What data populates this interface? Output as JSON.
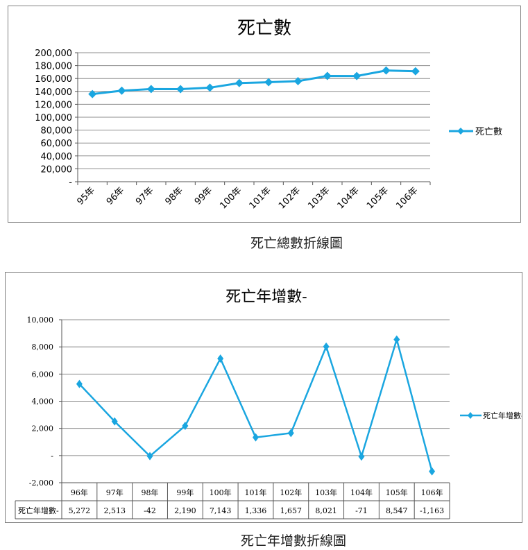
{
  "captions": {
    "chart1": "死亡總數折線圖",
    "chart2": "死亡年增數折線圖"
  },
  "colors": {
    "series": "#1aa6e0",
    "grid": "#8c8c8c",
    "frame": "#7f7f7f"
  },
  "chart_data": [
    {
      "type": "line",
      "title": "死亡數",
      "categories": [
        "95年",
        "96年",
        "97年",
        "98年",
        "99年",
        "100年",
        "101年",
        "102年",
        "103年",
        "104年",
        "105年",
        "106年"
      ],
      "series": [
        {
          "name": "死亡數",
          "values": [
            135839,
            141111,
            143624,
            143582,
            145772,
            152915,
            154251,
            155908,
            163929,
            163858,
            172405,
            171242
          ]
        }
      ],
      "ylim": [
        0,
        200000
      ],
      "yticks": [
        "-",
        "20,000",
        "40,000",
        "60,000",
        "80,000",
        "100,000",
        "120,000",
        "140,000",
        "160,000",
        "180,000",
        "200,000"
      ],
      "grid": true,
      "legend": "right"
    },
    {
      "type": "line",
      "title": "死亡年增數-",
      "categories": [
        "96年",
        "97年",
        "98年",
        "99年",
        "100年",
        "101年",
        "102年",
        "103年",
        "104年",
        "105年",
        "106年"
      ],
      "series": [
        {
          "name": "死亡年增數-",
          "values": [
            5272,
            2513,
            -42,
            2190,
            7143,
            1336,
            1657,
            8021,
            -71,
            8547,
            -1163
          ]
        }
      ],
      "ylim": [
        -2000,
        10000
      ],
      "yticks": [
        "-2,000",
        "-",
        "2,000",
        "4,000",
        "6,000",
        "8,000",
        "10,000"
      ],
      "table_labels": [
        "5,272",
        "2,513",
        "-42",
        "2,190",
        "7,143",
        "1,336",
        "1,657",
        "8,021",
        "-71",
        "8,547",
        "-1,163"
      ],
      "grid": true,
      "legend": "right"
    }
  ]
}
